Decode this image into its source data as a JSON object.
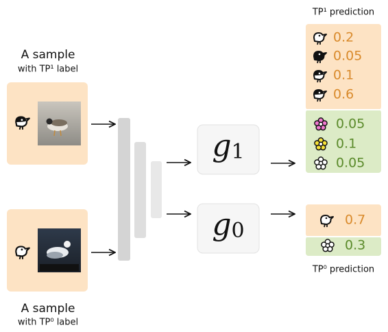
{
  "samples": [
    {
      "title": "A sample",
      "subtitle": "with TP¹ label"
    },
    {
      "title": "A sample",
      "subtitle": "with TP⁰ label"
    }
  ],
  "models": [
    {
      "symbol": "g",
      "subscript": "1"
    },
    {
      "symbol": "g",
      "subscript": "0"
    }
  ],
  "predictions": [
    {
      "title": "TP¹ prediction",
      "bird_values": [
        "0.2",
        "0.05",
        "0.1",
        "0.6"
      ],
      "flower_values": [
        "0.05",
        "0.1",
        "0.05"
      ]
    },
    {
      "title": "TP⁰ prediction",
      "bird_values": [
        "0.7"
      ],
      "flower_values": [
        "0.3"
      ]
    }
  ]
}
